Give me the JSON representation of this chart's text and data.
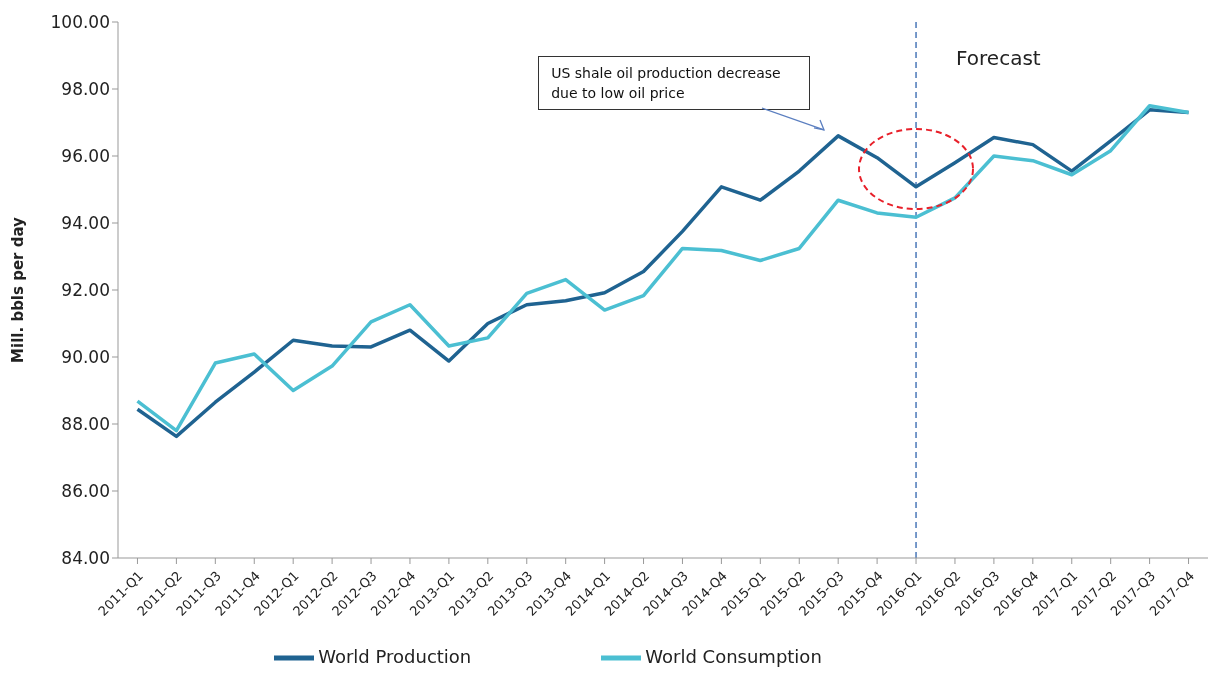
{
  "chart_data": {
    "type": "line",
    "ylabel": "Mill. bbls per day",
    "categories": [
      "2011-Q1",
      "2011-Q2",
      "2011-Q3",
      "2011-Q4",
      "2012-Q1",
      "2012-Q2",
      "2012-Q3",
      "2012-Q4",
      "2013-Q1",
      "2013-Q2",
      "2013-Q3",
      "2013-Q4",
      "2014-Q1",
      "2014-Q2",
      "2014-Q3",
      "2014-Q4",
      "2015-Q1",
      "2015-Q2",
      "2015-Q3",
      "2015-Q4",
      "2016-Q1",
      "2016-Q2",
      "2016-Q3",
      "2016-Q4",
      "2017-Q1",
      "2017-Q2",
      "2017-Q3",
      "2017-Q4"
    ],
    "series": [
      {
        "name": "World Production",
        "color": "#1f6391",
        "values": [
          88.44,
          87.63,
          88.65,
          89.55,
          90.5,
          90.33,
          90.3,
          90.8,
          89.88,
          91.0,
          91.56,
          91.68,
          91.92,
          92.55,
          93.75,
          95.08,
          94.68,
          95.55,
          96.6,
          95.95,
          95.08,
          95.8,
          96.55,
          96.34,
          95.55,
          96.45,
          97.38,
          97.3
        ]
      },
      {
        "name": "World Consumption",
        "color": "#4bbfd2",
        "values": [
          88.68,
          87.8,
          89.82,
          90.09,
          89.0,
          89.73,
          91.05,
          91.56,
          90.33,
          90.57,
          91.9,
          92.31,
          91.4,
          91.83,
          93.24,
          93.18,
          92.88,
          93.24,
          94.68,
          94.3,
          94.17,
          94.75,
          96.0,
          95.86,
          95.44,
          96.16,
          97.5,
          97.3
        ]
      }
    ],
    "ylim": [
      84,
      100
    ],
    "yticks": [
      {
        "value": 84,
        "label": "84.00"
      },
      {
        "value": 86,
        "label": "86.00"
      },
      {
        "value": 88,
        "label": "88.00"
      },
      {
        "value": 90,
        "label": "90.00"
      },
      {
        "value": 92,
        "label": "92.00"
      },
      {
        "value": 94,
        "label": "94.00"
      },
      {
        "value": 96,
        "label": "96.00"
      },
      {
        "value": 98,
        "label": "98.00"
      },
      {
        "value": 100,
        "label": "100.00"
      }
    ],
    "ref_lines": [
      {
        "axis": "x",
        "value": "2016-Q1",
        "color": "#4a78b8",
        "line_style": "dashed"
      }
    ],
    "annotations": [
      "US shale oil production decrease due to low oil price",
      "Forecast"
    ],
    "grid": false,
    "legend": "bottom",
    "marker": "none",
    "line_style": "solid"
  }
}
